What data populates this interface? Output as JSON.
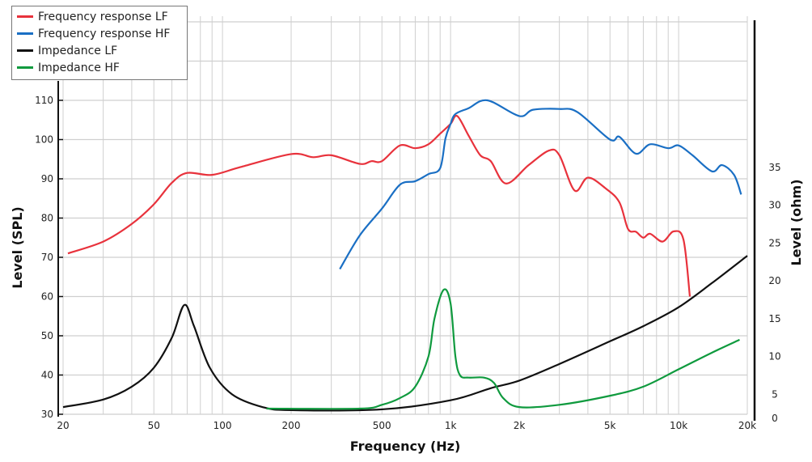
{
  "chart_data": {
    "type": "line",
    "xlabel": "Frequency (Hz)",
    "ylabel": "Level (SPL)",
    "y2label": "Level (ohm)",
    "xscale": "log",
    "xlim": [
      20,
      20000
    ],
    "ylim": [
      30,
      110
    ],
    "y2lim": [
      0,
      35
    ],
    "grid": true,
    "legend_position": "top-left",
    "x_ticks": [
      {
        "v": 20,
        "label": "20"
      },
      {
        "v": 50,
        "label": "50"
      },
      {
        "v": 100,
        "label": "100"
      },
      {
        "v": 200,
        "label": "200"
      },
      {
        "v": 500,
        "label": "500"
      },
      {
        "v": 1000,
        "label": "1k"
      },
      {
        "v": 2000,
        "label": "2k"
      },
      {
        "v": 5000,
        "label": "5k"
      },
      {
        "v": 10000,
        "label": "10k"
      },
      {
        "v": 20000,
        "label": "20k"
      }
    ],
    "y_ticks": [
      {
        "v": 30,
        "label": "30"
      },
      {
        "v": 40,
        "label": "40"
      },
      {
        "v": 50,
        "label": "50"
      },
      {
        "v": 60,
        "label": "60"
      },
      {
        "v": 70,
        "label": "70"
      },
      {
        "v": 80,
        "label": "80"
      },
      {
        "v": 90,
        "label": "90"
      },
      {
        "v": 100,
        "label": "100"
      },
      {
        "v": 110,
        "label": "110"
      }
    ],
    "y2_ticks": [
      {
        "v": 0,
        "label": "0"
      },
      {
        "v": 5,
        "label": "5"
      },
      {
        "v": 10,
        "label": "10"
      },
      {
        "v": 15,
        "label": "15"
      },
      {
        "v": 20,
        "label": "20"
      },
      {
        "v": 25,
        "label": "25"
      },
      {
        "v": 30,
        "label": "30"
      },
      {
        "v": 35,
        "label": "35"
      }
    ],
    "series": [
      {
        "name": "Frequency response LF",
        "color": "#e8323c",
        "axis": "left",
        "points": [
          [
            21,
            71
          ],
          [
            30,
            74
          ],
          [
            40,
            78.5
          ],
          [
            50,
            83.5
          ],
          [
            60,
            89
          ],
          [
            70,
            91.5
          ],
          [
            90,
            91
          ],
          [
            120,
            93
          ],
          [
            200,
            96.3
          ],
          [
            250,
            95.5
          ],
          [
            300,
            96
          ],
          [
            400,
            93.8
          ],
          [
            450,
            94.5
          ],
          [
            500,
            94.5
          ],
          [
            600,
            98.5
          ],
          [
            700,
            97.8
          ],
          [
            800,
            98.8
          ],
          [
            900,
            101.5
          ],
          [
            1000,
            104
          ],
          [
            1070,
            106
          ],
          [
            1200,
            101
          ],
          [
            1350,
            96
          ],
          [
            1500,
            94.5
          ],
          [
            1750,
            88.8
          ],
          [
            2200,
            93.5
          ],
          [
            2700,
            97.2
          ],
          [
            3000,
            96
          ],
          [
            3500,
            87
          ],
          [
            4000,
            90.3
          ],
          [
            4800,
            87.5
          ],
          [
            5500,
            84
          ],
          [
            6000,
            77.2
          ],
          [
            6500,
            76.5
          ],
          [
            7000,
            75
          ],
          [
            7500,
            76
          ],
          [
            8500,
            74
          ],
          [
            9500,
            76.6
          ],
          [
            10500,
            74.5
          ],
          [
            11200,
            60
          ]
        ]
      },
      {
        "name": "Frequency response HF",
        "color": "#1a6fc4",
        "axis": "left",
        "points": [
          [
            327,
            67
          ],
          [
            400,
            75.6
          ],
          [
            500,
            82.4
          ],
          [
            600,
            88.5
          ],
          [
            700,
            89.4
          ],
          [
            800,
            91.2
          ],
          [
            900,
            92.7
          ],
          [
            950,
            100.3
          ],
          [
            1000,
            104
          ],
          [
            1050,
            106.5
          ],
          [
            1200,
            108
          ],
          [
            1450,
            110
          ],
          [
            2000,
            106
          ],
          [
            2300,
            107.6
          ],
          [
            3000,
            107.8
          ],
          [
            3600,
            107
          ],
          [
            5000,
            100
          ],
          [
            5500,
            100.7
          ],
          [
            6500,
            96.4
          ],
          [
            7500,
            98.8
          ],
          [
            9000,
            97.8
          ],
          [
            10000,
            98.5
          ],
          [
            11500,
            96
          ],
          [
            14000,
            91.9
          ],
          [
            15500,
            93.5
          ],
          [
            17500,
            91
          ],
          [
            18800,
            86
          ]
        ]
      },
      {
        "name": "Impedance LF",
        "color": "#111111",
        "axis": "right",
        "points": [
          [
            20,
            3.3
          ],
          [
            30,
            4.3
          ],
          [
            40,
            6
          ],
          [
            50,
            8.5
          ],
          [
            60,
            12.5
          ],
          [
            68,
            16.8
          ],
          [
            75,
            14
          ],
          [
            88,
            8.5
          ],
          [
            110,
            5
          ],
          [
            150,
            3.3
          ],
          [
            200,
            2.9
          ],
          [
            500,
            3
          ],
          [
            1000,
            4.2
          ],
          [
            1500,
            5.8
          ],
          [
            2000,
            6.8
          ],
          [
            3000,
            9
          ],
          [
            5000,
            12
          ],
          [
            7000,
            14
          ],
          [
            10000,
            16.5
          ],
          [
            14000,
            19.7
          ],
          [
            20000,
            23.3
          ]
        ]
      },
      {
        "name": "Impedance HF",
        "color": "#0f9a3e",
        "axis": "right",
        "points": [
          [
            156,
            3.1
          ],
          [
            400,
            3.1
          ],
          [
            500,
            3.6
          ],
          [
            600,
            4.5
          ],
          [
            700,
            6
          ],
          [
            800,
            10
          ],
          [
            850,
            15
          ],
          [
            932,
            18.8
          ],
          [
            1000,
            17
          ],
          [
            1050,
            10
          ],
          [
            1100,
            7.5
          ],
          [
            1200,
            7.2
          ],
          [
            1400,
            7.2
          ],
          [
            1550,
            6.5
          ],
          [
            1700,
            4.5
          ],
          [
            2000,
            3.3
          ],
          [
            3000,
            3.6
          ],
          [
            5000,
            4.8
          ],
          [
            7000,
            6
          ],
          [
            10000,
            8.3
          ],
          [
            14000,
            10.5
          ],
          [
            18500,
            12.2
          ]
        ]
      }
    ]
  }
}
